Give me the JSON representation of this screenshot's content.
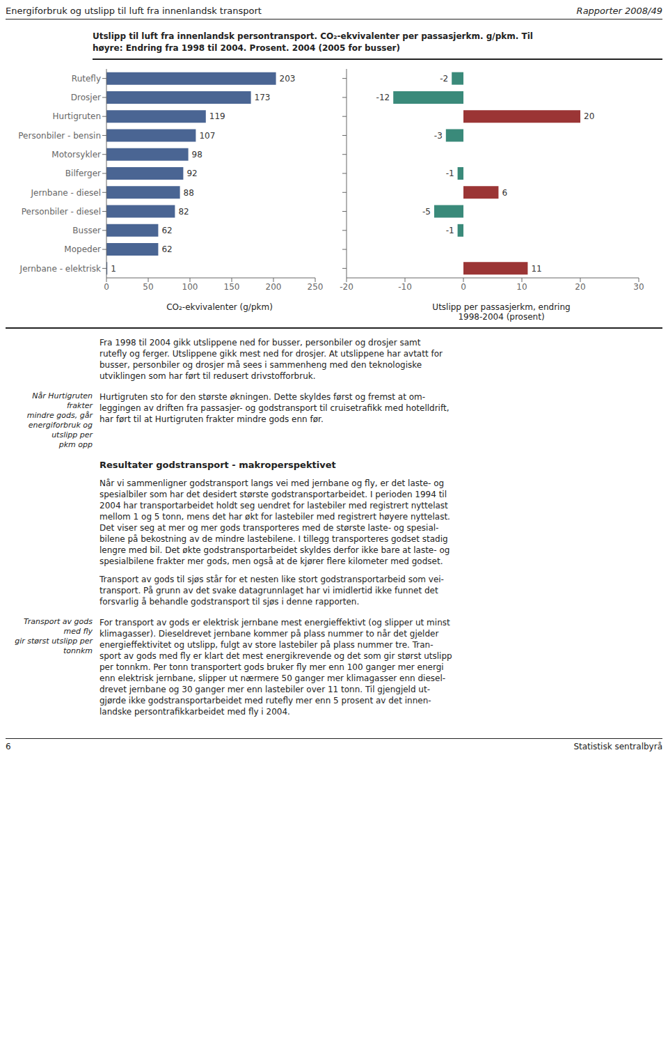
{
  "chart_data": [
    {
      "type": "bar",
      "orientation": "horizontal",
      "title": "Utslipp til luft fra innenlandsk persontransport. CO₂-ekvivalenter per passasjerkm. g/pkm. Til\nhøyre: Endring fra 1998 til 2004. Prosent. 2004 (2005 for busser)",
      "categories": [
        "Rutefly",
        "Drosjer",
        "Hurtigruten",
        "Personbiler - bensin",
        "Motorsykler",
        "Bilferger",
        "Jernbane - diesel",
        "Personbiler - diesel",
        "Busser",
        "Mopeder",
        "Jernbane - elektrisk"
      ],
      "values": [
        203,
        173,
        119,
        107,
        98,
        92,
        88,
        82,
        62,
        62,
        1
      ],
      "color": "#4A6593",
      "xlim": [
        0,
        250
      ],
      "xticks": [
        0,
        50,
        100,
        150,
        200,
        250
      ],
      "xlabel": "CO₂-ekvivalenter (g/pkm)",
      "data_labels": true,
      "grid": false,
      "annotations": [
        "Energiforbruk og utslipp til luft fra innenlandsk transport",
        "Rapporter 2008/49",
        "Fra 1998 til 2004 gikk utslippene ned for busser, personbiler og drosjer samt\nrutefly og ferger. Utslippene gikk mest ned for drosjer. At utslippene har avtatt for\nbusser, personbiler og drosjer må sees i sammenheng med den teknologiske\nutviklingen som har ført til redusert drivstofforbruk.",
        "Når Hurtigruten frakter\nmindre gods, går\nenergiforbruk og utslipp per\npkm opp",
        "Hurtigruten sto for den største økningen. Dette skyldes først og fremst at om-\nleggingen av driften fra passasjer- og godstransport til cruisetrafikk med hotelldrift,\nhar ført til at Hurtigruten frakter mindre gods enn før.",
        "Resultater godstransport - makroperspektivet",
        "Når vi sammenligner godstransport langs vei med jernbane og fly, er det laste- og\nspesialbiler som har det desidert største godstransportarbeidet. I perioden 1994 til\n2004 har transportarbeidet holdt seg uendret for lastebiler med registrert nyttelast\nmellom 1 og 5 tonn, mens det har økt for lastebiler med registrert høyere nyttelast.\nDet viser seg at mer og mer gods transporteres med de største laste- og spesial-\nbilene på bekostning av de mindre lastebilene. I tillegg transporteres godset stadig\nlengre med bil. Det økte godstransportarbeidet skyldes derfor ikke bare at laste- og\nspesialbilene frakter mer gods, men også at de kjører flere kilometer med godset.",
        "Transport av gods til sjøs står for et nesten like stort godstransportarbeid som vei-\ntransport. På grunn av det svake datagrunnlaget har vi imidlertid ikke funnet det\nforsvarlig å behandle godstransport til sjøs i denne rapporten.",
        "Transport av gods med fly\ngir størst utslipp per tonnkm",
        "For transport av gods er elektrisk jernbane mest energieffektivt (og slipper ut minst\nklimagasser). Dieseldrevet jernbane kommer på plass nummer to når det gjelder\nenergieffektivitet og utslipp, fulgt av store lastebiler på plass nummer tre. Tran-\nsport av gods med fly er klart det mest energikrevende og det som gir størst utslipp\nper tonnkm. Per tonn transportert gods bruker fly mer enn 100 ganger mer energi\nenn elektrisk jernbane, slipper ut nærmere 50 ganger mer klimagasser enn diesel-\ndrevet jernbane og 30 ganger mer enn lastebiler over 11 tonn. Til gjengjeld ut-\ngjørde ikke godstransportarbeidet med rutefly mer enn 5 prosent av det innen-\nlandske persontrafikkarbeidet med fly i 2004.",
        "6",
        "Statistisk sentralbyrå"
      ]
    },
    {
      "type": "bar",
      "orientation": "horizontal",
      "categories": [
        null,
        null,
        null,
        null,
        null,
        null,
        null,
        null,
        null,
        null,
        null
      ],
      "values": [
        -2,
        -12,
        20,
        -3,
        0,
        -1,
        6,
        -5,
        -1,
        0,
        11
      ],
      "colors": [
        "#3A8A7A",
        "#3A8A7A",
        "#9B3535",
        "#3A8A7A",
        "#3A8A7A",
        "#3A8A7A",
        "#9B3535",
        "#3A8A7A",
        "#3A8A7A",
        "#3A8A7A",
        "#9B3535"
      ],
      "xlim": [
        -20,
        30
      ],
      "xticks": [
        -20,
        -10,
        0,
        10,
        20,
        30
      ],
      "xlabel": "Utslipp per passasjerkm, endring\n1998-2004 (prosent)",
      "data_labels": true,
      "grid": false
    }
  ]
}
